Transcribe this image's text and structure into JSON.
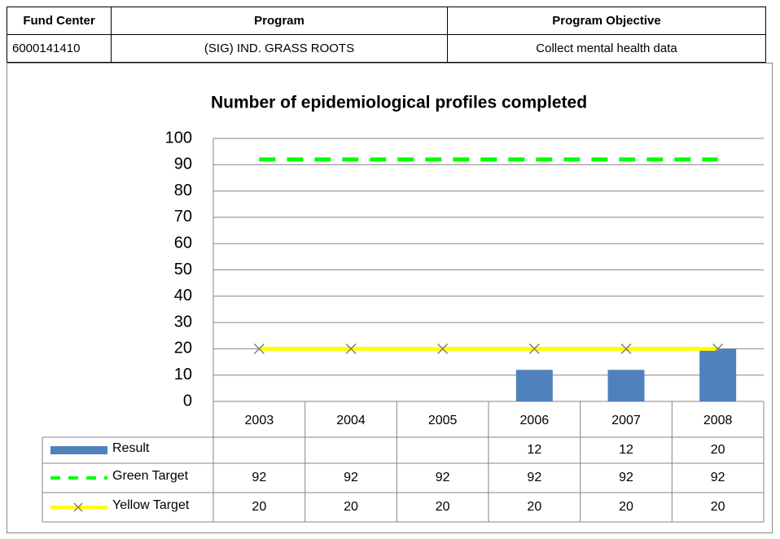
{
  "header": {
    "columns": [
      "Fund Center",
      "Program",
      "Program Objective"
    ],
    "rows": [
      [
        "6000141410",
        "(SIG) IND. GRASS ROOTS",
        "Collect mental health data"
      ]
    ]
  },
  "chart_data": {
    "type": "bar",
    "title": "Number of epidemiological profiles completed",
    "categories": [
      "2003",
      "2004",
      "2005",
      "2006",
      "2007",
      "2008"
    ],
    "series": [
      {
        "name": "Result",
        "kind": "bar",
        "color": "#4f81bd",
        "values": [
          null,
          null,
          null,
          12,
          12,
          20
        ]
      },
      {
        "name": "Green Target",
        "kind": "line",
        "style": "dashed",
        "color": "#00ff00",
        "values": [
          92,
          92,
          92,
          92,
          92,
          92
        ]
      },
      {
        "name": "Yellow Target",
        "kind": "line",
        "style": "solid",
        "marker": "x",
        "color": "#ffff00",
        "values": [
          20,
          20,
          20,
          20,
          20,
          20
        ]
      }
    ],
    "ylim": [
      0,
      100
    ],
    "yticks": [
      0,
      10,
      20,
      30,
      40,
      50,
      60,
      70,
      80,
      90,
      100
    ],
    "grid": true,
    "data_table": true
  }
}
